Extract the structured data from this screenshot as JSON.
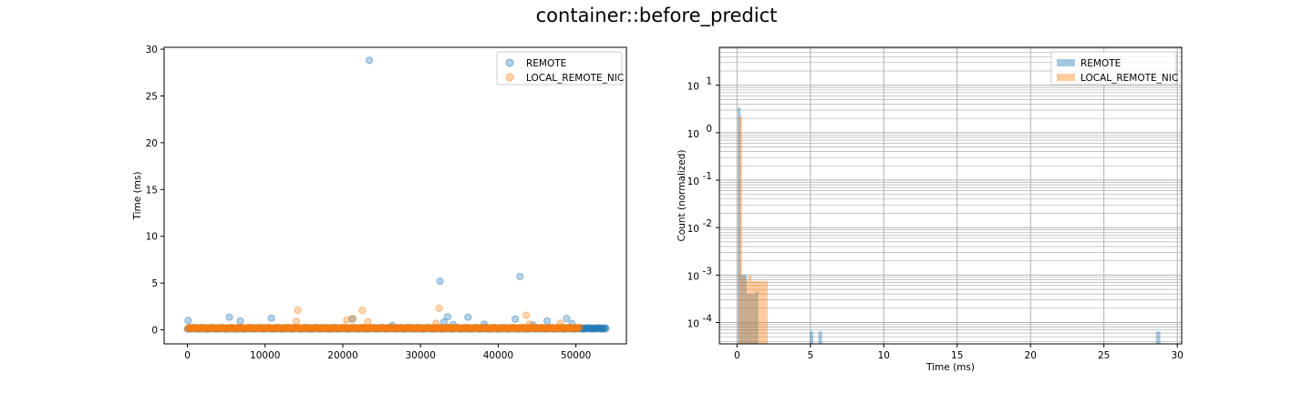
{
  "figure": {
    "title": "container::before_predict"
  },
  "colors": {
    "remote": "#1f77b4",
    "local": "#ff7f0e",
    "grid": "#b0b0b0"
  },
  "chart_data": [
    {
      "type": "scatter",
      "title": "",
      "xlabel": "",
      "ylabel": "Time (ms)",
      "xlim": [
        -3000,
        56500
      ],
      "ylim": [
        -1.5,
        30.2
      ],
      "xticks": [
        0,
        10000,
        20000,
        30000,
        40000,
        50000
      ],
      "yticks": [
        0,
        5,
        10,
        15,
        20,
        25,
        30
      ],
      "grid": false,
      "legend": "top-right",
      "series": [
        {
          "name": "REMOTE",
          "color": "#1f77b4",
          "baseline_range": [
            0,
            54000
          ],
          "baseline_y": 0.12,
          "points": [
            [
              100,
              1.0
            ],
            [
              5400,
              1.35
            ],
            [
              6800,
              0.95
            ],
            [
              10800,
              1.25
            ],
            [
              21200,
              1.15
            ],
            [
              23400,
              28.8
            ],
            [
              26400,
              0.45
            ],
            [
              32500,
              5.2
            ],
            [
              33000,
              0.85
            ],
            [
              33500,
              1.4
            ],
            [
              34200,
              0.55
            ],
            [
              36100,
              1.35
            ],
            [
              38200,
              0.6
            ],
            [
              42200,
              1.15
            ],
            [
              42800,
              5.7
            ],
            [
              44500,
              0.5
            ],
            [
              46300,
              0.95
            ],
            [
              48800,
              1.2
            ],
            [
              49500,
              0.65
            ]
          ]
        },
        {
          "name": "LOCAL_REMOTE_NIC",
          "color": "#ff7f0e",
          "baseline_range": [
            0,
            50500
          ],
          "baseline_y": 0.15,
          "points": [
            [
              14200,
              2.1
            ],
            [
              14000,
              0.9
            ],
            [
              20500,
              1.05
            ],
            [
              21300,
              1.2
            ],
            [
              22500,
              2.1
            ],
            [
              23200,
              0.85
            ],
            [
              32400,
              2.3
            ],
            [
              32000,
              0.7
            ],
            [
              43600,
              1.55
            ],
            [
              44000,
              0.6
            ],
            [
              48000,
              0.7
            ]
          ]
        }
      ]
    },
    {
      "type": "bar",
      "subtype": "histogram",
      "title": "",
      "xlabel": "Time (ms)",
      "ylabel": "Count (normalized)",
      "xlim": [
        -1.2,
        30.3
      ],
      "ylim_log": [
        -4.45,
        1.8
      ],
      "yscale": "log",
      "xticks": [
        0,
        5,
        10,
        15,
        20,
        25,
        30
      ],
      "ytick_labels": [
        "10",
        "10",
        "10",
        "10",
        "10",
        "10"
      ],
      "ytick_exponents": [
        "-4",
        "-3",
        "-2",
        "-1",
        "0",
        "1"
      ],
      "ytick_values": [
        -4,
        -3,
        -2,
        -1,
        0,
        1
      ],
      "grid": true,
      "legend": "top-right",
      "series": [
        {
          "name": "REMOTE",
          "color": "#1f77b4",
          "bins": [
            [
              0.05,
              0.25,
              3.4
            ],
            [
              0.25,
              0.45,
              0.001
            ],
            [
              0.45,
              0.65,
              0.001
            ],
            [
              0.65,
              0.85,
              0.0004
            ],
            [
              0.85,
              1.05,
              0.0004
            ],
            [
              1.05,
              1.25,
              0.0004
            ],
            [
              1.25,
              1.45,
              0.00045
            ],
            [
              4.95,
              5.2,
              6.5e-05
            ],
            [
              5.55,
              5.8,
              6.5e-05
            ],
            [
              28.55,
              28.85,
              6.5e-05
            ]
          ]
        },
        {
          "name": "LOCAL_REMOTE_NIC",
          "color": "#ff7f0e",
          "bins": [
            [
              0.12,
              0.34,
              2.2
            ],
            [
              0.34,
              0.56,
              0.00095
            ],
            [
              0.56,
              0.78,
              0.00075
            ],
            [
              0.78,
              1.0,
              0.00095
            ],
            [
              1.0,
              1.22,
              0.00075
            ],
            [
              1.22,
              1.44,
              0.00075
            ],
            [
              1.44,
              1.66,
              0.00075
            ],
            [
              1.66,
              1.88,
              0.00075
            ],
            [
              1.88,
              2.1,
              0.00075
            ]
          ]
        }
      ]
    }
  ]
}
